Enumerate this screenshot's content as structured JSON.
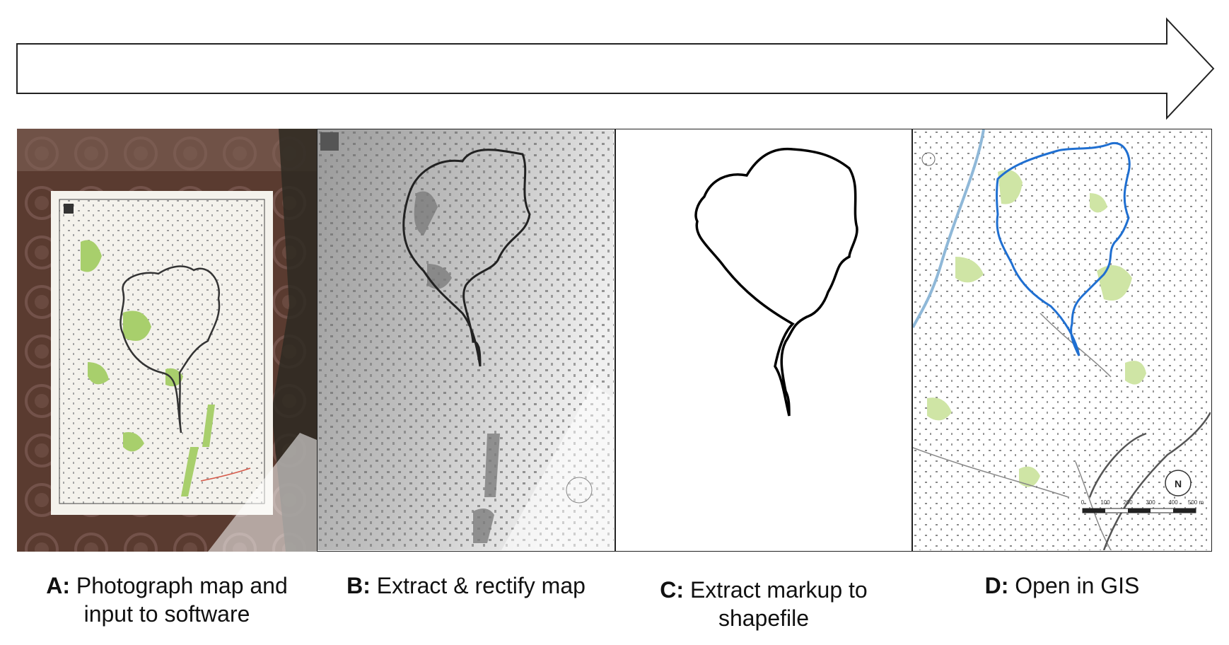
{
  "steps": [
    {
      "letter": "A:",
      "text_line1": "Photograph map and",
      "text_line2": "input to software"
    },
    {
      "letter": "B:",
      "text_line1": "Extract & rectify map",
      "text_line2": ""
    },
    {
      "letter": "C:",
      "text_line1": "Extract markup to",
      "text_line2": "shapefile"
    },
    {
      "letter": "D:",
      "text_line1": "Open in GIS",
      "text_line2": ""
    }
  ],
  "scale_bar": {
    "labels": [
      "0",
      "100",
      "200",
      "300",
      "400",
      "500 m"
    ]
  },
  "north_label": "N",
  "colors": {
    "route_markup": "#111111",
    "route_gis": "#1f6fd1",
    "vegetation": "#a8cf6c",
    "outline": "#222222"
  }
}
